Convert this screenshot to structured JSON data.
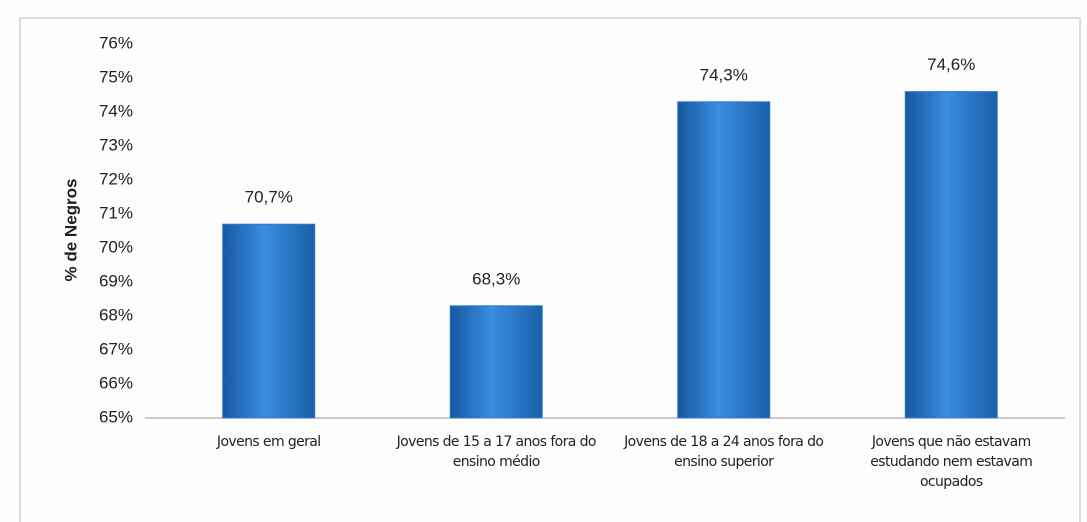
{
  "chart_data": {
    "type": "bar",
    "y_axis_label": "% de Negros",
    "categories": [
      "Jovens em geral",
      "Jovens de 15 a 17 anos fora do ensino médio",
      "Jovens de 18 a 24 anos fora do ensino superior",
      "Jovens que não estavam estudando nem estavam ocupados"
    ],
    "values": [
      70.7,
      68.3,
      74.3,
      74.6
    ],
    "value_labels": [
      "70,7%",
      "68,3%",
      "74,3%",
      "74,6%"
    ],
    "color": "#2a7bd0",
    "ylim": [
      65,
      76
    ],
    "yticks": [
      {
        "value": 65,
        "label": "65%"
      },
      {
        "value": 66,
        "label": "66%"
      },
      {
        "value": 67,
        "label": "67%"
      },
      {
        "value": 68,
        "label": "68%"
      },
      {
        "value": 69,
        "label": "69%"
      },
      {
        "value": 70,
        "label": "70%"
      },
      {
        "value": 71,
        "label": "71%"
      },
      {
        "value": 72,
        "label": "72%"
      },
      {
        "value": 73,
        "label": "73%"
      },
      {
        "value": 74,
        "label": "74%"
      },
      {
        "value": 75,
        "label": "75%"
      },
      {
        "value": 76,
        "label": "76%"
      }
    ],
    "grid": false
  }
}
